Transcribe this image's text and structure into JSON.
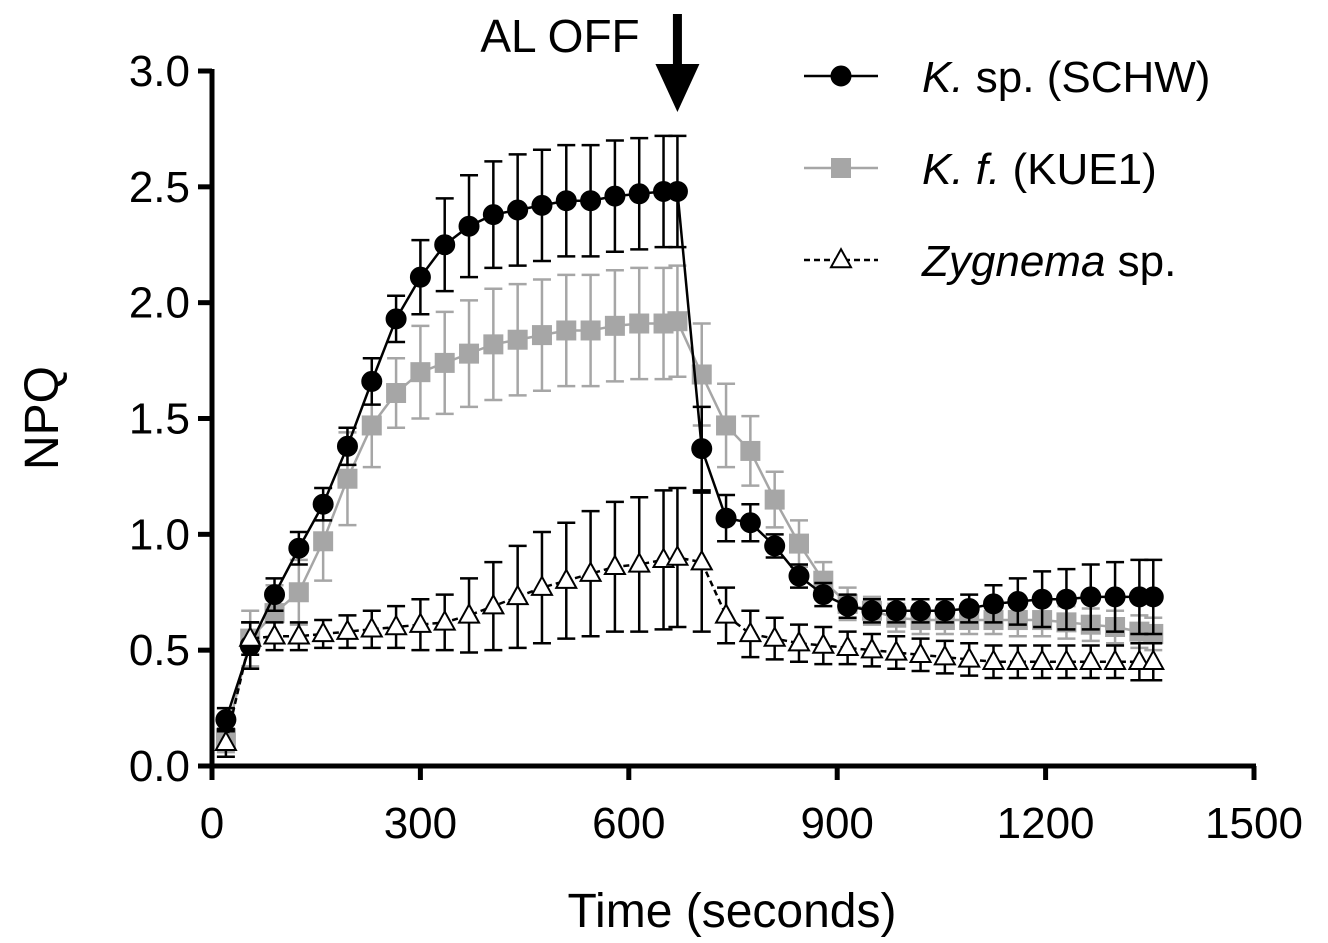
{
  "chart_data": {
    "type": "line",
    "xlabel": "Time (seconds)",
    "ylabel": "NPQ",
    "xlim": [
      0,
      1500
    ],
    "ylim": [
      0,
      3.0
    ],
    "x_ticks": [
      "0",
      "300",
      "600",
      "900",
      "1200",
      "1500"
    ],
    "y_ticks": [
      "0.0",
      "0.5",
      "1.0",
      "1.5",
      "2.0",
      "2.5",
      "3.0"
    ],
    "grid": false,
    "legend_position": "top-right",
    "annotation": {
      "text": "AL OFF",
      "x": 670,
      "arrow": "down"
    },
    "series": [
      {
        "name_italic": "K.",
        "name_rest": " sp. (SCHW)",
        "name": "K. sp. (SCHW)",
        "color": "#000000",
        "marker": "circle",
        "line": "solid",
        "x": [
          20,
          55,
          90,
          125,
          160,
          195,
          230,
          265,
          300,
          335,
          370,
          405,
          440,
          475,
          510,
          545,
          580,
          615,
          650,
          670,
          705,
          740,
          775,
          810,
          845,
          880,
          915,
          950,
          985,
          1020,
          1055,
          1090,
          1125,
          1160,
          1195,
          1230,
          1265,
          1300,
          1335,
          1355
        ],
        "y": [
          0.2,
          0.52,
          0.74,
          0.94,
          1.13,
          1.38,
          1.66,
          1.93,
          2.11,
          2.25,
          2.33,
          2.38,
          2.4,
          2.42,
          2.44,
          2.44,
          2.46,
          2.47,
          2.48,
          2.48,
          1.37,
          1.07,
          1.05,
          0.95,
          0.82,
          0.74,
          0.69,
          0.67,
          0.67,
          0.67,
          0.67,
          0.68,
          0.7,
          0.71,
          0.72,
          0.72,
          0.73,
          0.73,
          0.73,
          0.73
        ],
        "err": [
          0.05,
          0.1,
          0.07,
          0.07,
          0.07,
          0.08,
          0.1,
          0.1,
          0.16,
          0.2,
          0.22,
          0.23,
          0.24,
          0.24,
          0.24,
          0.24,
          0.24,
          0.24,
          0.24,
          0.24,
          0.18,
          0.1,
          0.08,
          0.05,
          0.05,
          0.05,
          0.05,
          0.05,
          0.05,
          0.05,
          0.05,
          0.06,
          0.08,
          0.1,
          0.12,
          0.13,
          0.14,
          0.15,
          0.16,
          0.16
        ]
      },
      {
        "name_italic": "K. f.",
        "name_rest": " (KUE1)",
        "name": "K. f. (KUE1)",
        "color": "#a6a6a6",
        "marker": "square",
        "line": "solid",
        "x": [
          20,
          55,
          90,
          125,
          160,
          195,
          230,
          265,
          300,
          335,
          370,
          405,
          440,
          475,
          510,
          545,
          580,
          615,
          650,
          670,
          705,
          740,
          775,
          810,
          845,
          880,
          915,
          950,
          985,
          1020,
          1055,
          1090,
          1125,
          1160,
          1195,
          1230,
          1265,
          1300,
          1335,
          1355
        ],
        "y": [
          0.12,
          0.55,
          0.66,
          0.75,
          0.97,
          1.24,
          1.47,
          1.61,
          1.7,
          1.74,
          1.78,
          1.82,
          1.84,
          1.86,
          1.88,
          1.88,
          1.9,
          1.91,
          1.91,
          1.92,
          1.69,
          1.47,
          1.36,
          1.15,
          0.96,
          0.8,
          0.7,
          0.67,
          0.64,
          0.63,
          0.63,
          0.63,
          0.63,
          0.63,
          0.63,
          0.62,
          0.61,
          0.6,
          0.58,
          0.57
        ],
        "err": [
          0.06,
          0.12,
          0.12,
          0.14,
          0.17,
          0.2,
          0.18,
          0.15,
          0.2,
          0.22,
          0.23,
          0.24,
          0.24,
          0.24,
          0.24,
          0.24,
          0.24,
          0.24,
          0.24,
          0.24,
          0.22,
          0.18,
          0.15,
          0.12,
          0.1,
          0.08,
          0.07,
          0.06,
          0.06,
          0.06,
          0.06,
          0.06,
          0.06,
          0.07,
          0.07,
          0.07,
          0.07,
          0.07,
          0.07,
          0.07
        ]
      },
      {
        "name_italic": "Zygnema",
        "name_rest": " sp.",
        "name": "Zygnema sp.",
        "color": "#000000",
        "marker": "triangle-open",
        "line": "dashed",
        "x": [
          20,
          55,
          90,
          125,
          160,
          195,
          230,
          265,
          300,
          335,
          370,
          405,
          440,
          475,
          510,
          545,
          580,
          615,
          650,
          670,
          705,
          740,
          775,
          810,
          845,
          880,
          915,
          950,
          985,
          1020,
          1055,
          1090,
          1125,
          1160,
          1195,
          1230,
          1265,
          1300,
          1335,
          1355
        ],
        "y": [
          0.1,
          0.55,
          0.56,
          0.56,
          0.57,
          0.58,
          0.59,
          0.6,
          0.61,
          0.62,
          0.65,
          0.69,
          0.73,
          0.77,
          0.8,
          0.83,
          0.86,
          0.87,
          0.89,
          0.9,
          0.88,
          0.65,
          0.57,
          0.55,
          0.53,
          0.52,
          0.51,
          0.5,
          0.49,
          0.48,
          0.47,
          0.46,
          0.45,
          0.45,
          0.45,
          0.45,
          0.45,
          0.45,
          0.45,
          0.45
        ],
        "err": [
          0.06,
          0.07,
          0.06,
          0.06,
          0.06,
          0.07,
          0.08,
          0.09,
          0.11,
          0.12,
          0.16,
          0.19,
          0.22,
          0.24,
          0.25,
          0.27,
          0.28,
          0.29,
          0.3,
          0.3,
          0.3,
          0.12,
          0.1,
          0.09,
          0.08,
          0.08,
          0.07,
          0.07,
          0.07,
          0.07,
          0.07,
          0.07,
          0.07,
          0.07,
          0.07,
          0.07,
          0.07,
          0.07,
          0.08,
          0.08
        ]
      }
    ]
  }
}
